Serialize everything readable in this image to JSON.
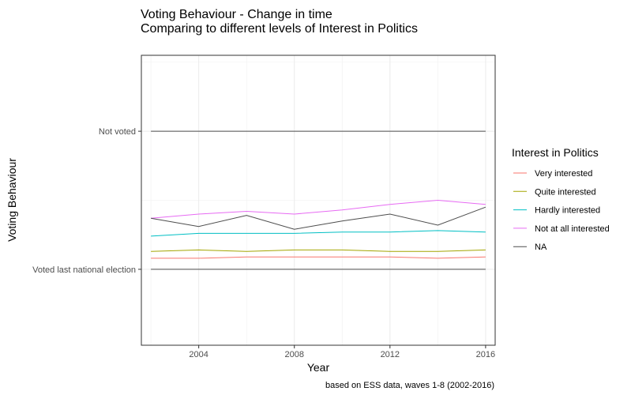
{
  "chart_data": {
    "type": "line",
    "title": "Voting Behaviour - Change in time",
    "subtitle": "Comparing to different levels of Interest in Politics",
    "xlabel": "Year",
    "ylabel": "Voting Behaviour",
    "caption": "based on ESS data, waves 1-8 (2002-2016)",
    "xlim": [
      2001.6,
      2016.4
    ],
    "ylim": [
      0.45,
      2.55
    ],
    "x_ticks": [
      2004,
      2008,
      2012,
      2016
    ],
    "y_ticks": [
      {
        "value": 1,
        "label": "Voted last national election"
      },
      {
        "value": 2,
        "label": "Not voted"
      }
    ],
    "x": [
      2002,
      2004,
      2006,
      2008,
      2010,
      2012,
      2014,
      2016
    ],
    "grid": true,
    "legend": {
      "title": "Interest in Politics",
      "position": "right"
    },
    "series": [
      {
        "name": "Very interested",
        "color": "#F8766D",
        "values": [
          1.08,
          1.08,
          1.09,
          1.09,
          1.09,
          1.09,
          1.08,
          1.09
        ]
      },
      {
        "name": "Quite interested",
        "color": "#A3A500",
        "values": [
          1.13,
          1.14,
          1.13,
          1.14,
          1.14,
          1.13,
          1.13,
          1.14
        ]
      },
      {
        "name": "Hardly interested",
        "color": "#00BFC4",
        "values": [
          1.24,
          1.26,
          1.26,
          1.26,
          1.27,
          1.27,
          1.28,
          1.27
        ]
      },
      {
        "name": "Not at all interested",
        "color": "#E76BF3",
        "values": [
          1.37,
          1.4,
          1.42,
          1.4,
          1.43,
          1.47,
          1.5,
          1.47
        ]
      },
      {
        "name": "NA",
        "color": "#4d4d4d",
        "values": [
          1.37,
          1.31,
          1.39,
          1.29,
          1.35,
          1.4,
          1.32,
          1.45
        ]
      }
    ],
    "reference_lines": [
      {
        "y": 1,
        "color": "#4d4d4d"
      },
      {
        "y": 2,
        "color": "#4d4d4d"
      }
    ]
  }
}
